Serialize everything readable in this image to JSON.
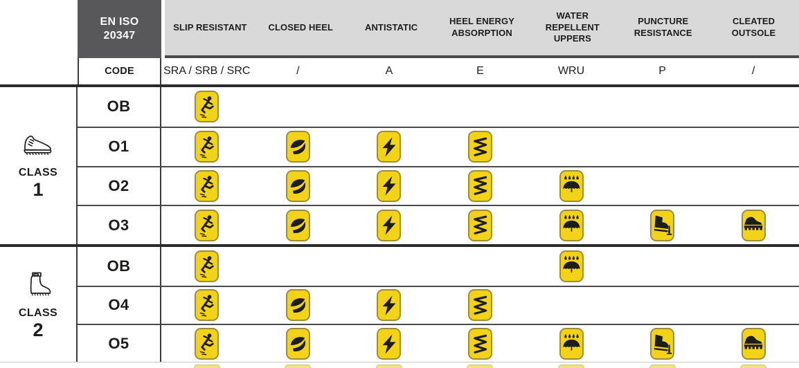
{
  "standard": {
    "name_line1": "EN ISO",
    "name_line2": "20347"
  },
  "code_row_label": "CODE",
  "columns": [
    {
      "id": "slip-resistant",
      "label": "SLIP RESISTANT",
      "code": "SRA / SRB / SRC"
    },
    {
      "id": "closed-heel",
      "label": "CLOSED HEEL",
      "code": "/"
    },
    {
      "id": "antistatic",
      "label": "ANTISTATIC",
      "code": "A"
    },
    {
      "id": "heel-energy-absorption",
      "label": "HEEL ENERGY ABSORPTION",
      "code": "E"
    },
    {
      "id": "water-repellent-uppers",
      "label": "WATER REPELLENT UPPERS",
      "code": "WRU"
    },
    {
      "id": "puncture-resistance",
      "label": "PUNCTURE RESISTANCE",
      "code": "P"
    },
    {
      "id": "cleated-outsole",
      "label": "CLEATED OUTSOLE",
      "code": "/"
    }
  ],
  "classes": [
    {
      "label": "CLASS",
      "number": "1",
      "footwear_icon": "low-shoe-icon",
      "rows": [
        {
          "code": "OB",
          "features": [
            "slip-resistant"
          ]
        },
        {
          "code": "O1",
          "features": [
            "slip-resistant",
            "closed-heel",
            "antistatic",
            "heel-energy-absorption"
          ]
        },
        {
          "code": "O2",
          "features": [
            "slip-resistant",
            "closed-heel",
            "antistatic",
            "heel-energy-absorption",
            "water-repellent-uppers"
          ]
        },
        {
          "code": "O3",
          "features": [
            "slip-resistant",
            "closed-heel",
            "antistatic",
            "heel-energy-absorption",
            "water-repellent-uppers",
            "puncture-resistance",
            "cleated-outsole"
          ]
        }
      ]
    },
    {
      "label": "CLASS",
      "number": "2",
      "footwear_icon": "rubber-boot-icon",
      "rows": [
        {
          "code": "OB",
          "features": [
            "slip-resistant",
            "water-repellent-uppers"
          ]
        },
        {
          "code": "O4",
          "features": [
            "slip-resistant",
            "closed-heel",
            "antistatic",
            "heel-energy-absorption"
          ]
        },
        {
          "code": "O5",
          "features": [
            "slip-resistant",
            "closed-heel",
            "antistatic",
            "heel-energy-absorption",
            "water-repellent-uppers",
            "puncture-resistance",
            "cleated-outsole"
          ]
        }
      ]
    }
  ],
  "colors": {
    "pictogram_yellow": "#F2D318",
    "pictogram_border": "#9D8D3A",
    "symbol_black": "#1D1D1B",
    "header_dark_gray": "#58585A",
    "header_light_gray": "#D9D9D9",
    "grid_line": "#4A4A4A"
  }
}
